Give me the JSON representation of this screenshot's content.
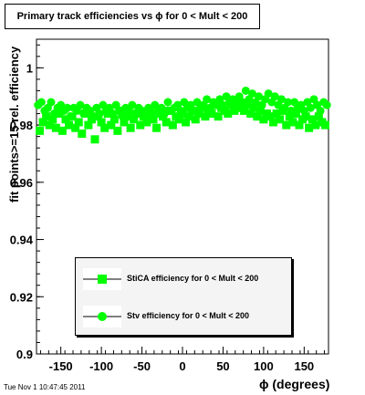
{
  "chart_data": {
    "type": "scatter",
    "title": "Primary track efficiencies vs ϕ for 0 < Mult < 200",
    "xlabel": "ϕ (degrees)",
    "ylabel": "fit points>=15 rel. efficiency",
    "xlim": [
      -180,
      180
    ],
    "ylim": [
      0.9,
      1.01
    ],
    "xticks": [
      -150,
      -100,
      -50,
      0,
      50,
      100,
      150
    ],
    "xtick_labels": [
      "-150",
      "-100",
      "-50",
      "0",
      "50",
      "100",
      "150"
    ],
    "yticks": [
      0.9,
      0.92,
      0.94,
      0.96,
      0.98,
      1.0
    ],
    "ytick_labels": [
      "0.9",
      "0.92",
      "0.94",
      "0.96",
      "0.98",
      "1"
    ],
    "grid": false,
    "legend_position": "bottom-center",
    "series": [
      {
        "name": "StiCA efficiency  for 0 < Mult < 200",
        "marker": "square",
        "color": "#00ff00",
        "x": [
          -176,
          -172,
          -168,
          -164,
          -160,
          -156,
          -152,
          -148,
          -144,
          -140,
          -136,
          -132,
          -128,
          -124,
          -120,
          -116,
          -112,
          -108,
          -104,
          -100,
          -96,
          -92,
          -88,
          -84,
          -80,
          -76,
          -72,
          -68,
          -64,
          -60,
          -56,
          -52,
          -48,
          -44,
          -40,
          -36,
          -32,
          -28,
          -24,
          -20,
          -16,
          -12,
          -8,
          -4,
          0,
          4,
          8,
          12,
          16,
          20,
          24,
          28,
          32,
          36,
          40,
          44,
          48,
          52,
          56,
          60,
          64,
          68,
          72,
          76,
          80,
          84,
          88,
          92,
          96,
          100,
          104,
          108,
          112,
          116,
          120,
          124,
          128,
          132,
          136,
          140,
          144,
          148,
          152,
          156,
          160,
          164,
          168,
          172,
          176
        ],
        "y": [
          0.978,
          0.981,
          0.983,
          0.98,
          0.982,
          0.979,
          0.984,
          0.978,
          0.982,
          0.98,
          0.983,
          0.979,
          0.981,
          0.977,
          0.984,
          0.98,
          0.982,
          0.975,
          0.983,
          0.981,
          0.979,
          0.984,
          0.98,
          0.982,
          0.978,
          0.985,
          0.981,
          0.983,
          0.979,
          0.982,
          0.984,
          0.98,
          0.983,
          0.981,
          0.985,
          0.982,
          0.979,
          0.984,
          0.983,
          0.981,
          0.985,
          0.98,
          0.983,
          0.982,
          0.984,
          0.981,
          0.983,
          0.985,
          0.982,
          0.984,
          0.986,
          0.983,
          0.985,
          0.984,
          0.987,
          0.983,
          0.986,
          0.985,
          0.984,
          0.987,
          0.985,
          0.988,
          0.986,
          0.985,
          0.987,
          0.984,
          0.986,
          0.983,
          0.985,
          0.982,
          0.984,
          0.983,
          0.981,
          0.984,
          0.982,
          0.985,
          0.98,
          0.983,
          0.981,
          0.984,
          0.98,
          0.982,
          0.983,
          0.979,
          0.982,
          0.98,
          0.983,
          0.981,
          0.98
        ]
      },
      {
        "name": "Stv efficiency  for 0 < Mult < 200",
        "marker": "circle",
        "color": "#00ff00",
        "x": [
          -178,
          -174,
          -170,
          -166,
          -162,
          -158,
          -154,
          -150,
          -146,
          -142,
          -138,
          -134,
          -130,
          -126,
          -122,
          -118,
          -114,
          -110,
          -106,
          -102,
          -98,
          -94,
          -90,
          -86,
          -82,
          -78,
          -74,
          -70,
          -66,
          -62,
          -58,
          -54,
          -50,
          -46,
          -42,
          -38,
          -34,
          -30,
          -26,
          -22,
          -18,
          -14,
          -10,
          -6,
          -2,
          2,
          6,
          10,
          14,
          18,
          22,
          26,
          30,
          34,
          38,
          42,
          46,
          50,
          54,
          58,
          62,
          66,
          70,
          74,
          78,
          82,
          86,
          90,
          94,
          98,
          102,
          106,
          110,
          114,
          118,
          122,
          126,
          130,
          134,
          138,
          142,
          146,
          150,
          154,
          158,
          162,
          166,
          170,
          174,
          178
        ],
        "y": [
          0.987,
          0.988,
          0.985,
          0.986,
          0.988,
          0.984,
          0.986,
          0.987,
          0.985,
          0.986,
          0.983,
          0.986,
          0.985,
          0.987,
          0.984,
          0.986,
          0.985,
          0.983,
          0.986,
          0.984,
          0.987,
          0.985,
          0.986,
          0.984,
          0.987,
          0.985,
          0.983,
          0.986,
          0.985,
          0.987,
          0.984,
          0.986,
          0.985,
          0.983,
          0.986,
          0.984,
          0.987,
          0.985,
          0.986,
          0.984,
          0.988,
          0.985,
          0.986,
          0.987,
          0.985,
          0.988,
          0.986,
          0.987,
          0.985,
          0.988,
          0.986,
          0.987,
          0.989,
          0.986,
          0.988,
          0.987,
          0.989,
          0.987,
          0.99,
          0.988,
          0.989,
          0.987,
          0.99,
          0.988,
          0.992,
          0.989,
          0.991,
          0.988,
          0.99,
          0.987,
          0.989,
          0.991,
          0.988,
          0.99,
          0.987,
          0.989,
          0.986,
          0.988,
          0.985,
          0.988,
          0.986,
          0.987,
          0.985,
          0.988,
          0.986,
          0.989,
          0.987,
          0.985,
          0.988,
          0.987
        ]
      }
    ]
  },
  "footer": {
    "timestamp": "Tue Nov  1 10:47:45 2011"
  }
}
